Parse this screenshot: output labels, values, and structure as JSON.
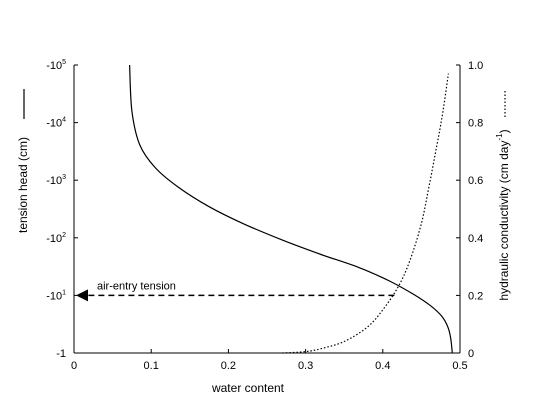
{
  "chart_data": {
    "type": "line",
    "xlabel": "water content",
    "ylabel_left": "tension head (cm)",
    "ylabel_right": "hydraulic conductivity (cm day",
    "ylabel_right_sup": "-1",
    "xlim": [
      0,
      0.5
    ],
    "x_ticks": [
      {
        "value": 0,
        "label": "0"
      },
      {
        "value": 0.1,
        "label": "0.1"
      },
      {
        "value": 0.2,
        "label": "0.2"
      },
      {
        "value": 0.3,
        "label": "0.3"
      },
      {
        "value": 0.4,
        "label": "0.4"
      },
      {
        "value": 0.5,
        "label": "0.5"
      }
    ],
    "y_left_scale": "log",
    "y_left_ticks": [
      {
        "log": 0,
        "base": "-1",
        "exp": ""
      },
      {
        "log": 1,
        "base": "-10",
        "exp": "1"
      },
      {
        "log": 2,
        "base": "-10",
        "exp": "2"
      },
      {
        "log": 3,
        "base": "-10",
        "exp": "3"
      },
      {
        "log": 4,
        "base": "-10",
        "exp": "4"
      },
      {
        "log": 5,
        "base": "-10",
        "exp": "5"
      }
    ],
    "y_right_ticks": [
      "0",
      "0.2",
      "0.4",
      "0.6",
      "0.8",
      "1.0"
    ],
    "ylim_right": [
      0,
      1.0
    ],
    "series": [
      {
        "key": "tension",
        "axis": "left",
        "style": "solid",
        "color": "#000000",
        "x": [
          0.49,
          0.488,
          0.484,
          0.476,
          0.462,
          0.44,
          0.41,
          0.37,
          0.32,
          0.27,
          0.22,
          0.175,
          0.135,
          0.105,
          0.085,
          0.075,
          0.072
        ],
        "y_tension_cm": [
          -1,
          -1.8,
          -2.9,
          -4.4,
          -6.6,
          -10.4,
          -17.4,
          -30.2,
          -51.3,
          -91.2,
          -174,
          -347,
          -759,
          -1660,
          -4169,
          -15849,
          -100000
        ]
      },
      {
        "key": "conductivity",
        "axis": "right",
        "style": "dotted",
        "color": "#000000",
        "x": [
          0.27,
          0.3,
          0.32,
          0.35,
          0.38,
          0.4,
          0.42,
          0.435,
          0.45,
          0.46,
          0.47,
          0.478,
          0.485
        ],
        "y": [
          0,
          0.005,
          0.015,
          0.04,
          0.09,
          0.15,
          0.23,
          0.32,
          0.45,
          0.58,
          0.72,
          0.84,
          0.97
        ]
      }
    ],
    "annotation": {
      "text": "air-entry tension",
      "arrow_from_x": 0.415,
      "y_tension_cm": -10,
      "style": "dashed"
    }
  }
}
